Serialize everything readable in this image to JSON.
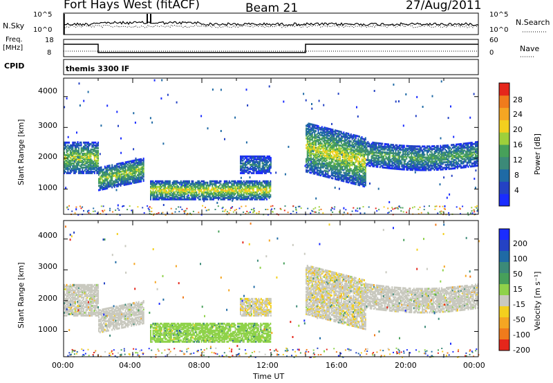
{
  "header": {
    "station": "Fort Hays West (fitACF)",
    "beam": "Beam 21",
    "date": "27/Aug/2011"
  },
  "noise_panel": {
    "left_label": "N.Sky",
    "right_label": "N.Search",
    "left_ticks": [
      "10^5",
      "10^0"
    ],
    "right_ticks": [
      "10^5",
      "10^0"
    ]
  },
  "freq_panel": {
    "left_label_1": "Freq.",
    "left_label_2": "[MHz]",
    "left_ticks": [
      "18",
      "8"
    ],
    "right_label": "Nave",
    "right_ticks": [
      "60",
      "0"
    ]
  },
  "cpid_panel": {
    "label": "CPID",
    "text": "themis 3300 IF"
  },
  "x_axis": {
    "ticks": [
      "00:00",
      "04:00",
      "08:00",
      "12:00",
      "16:00",
      "20:00",
      "00:00"
    ],
    "label": "Time UT"
  },
  "power_panel": {
    "ylabel": "Slant Range [km]",
    "yticks": [
      "4000",
      "3000",
      "2000",
      "1000"
    ],
    "colorbar_label": "Power [dB]",
    "colorbar_ticks": [
      "28",
      "24",
      "20",
      "16",
      "12",
      "8",
      "4"
    ]
  },
  "velocity_panel": {
    "ylabel": "Slant Range [km]",
    "yticks": [
      "4000",
      "3000",
      "2000",
      "1000"
    ],
    "colorbar_label": "Velocity [m s⁻¹]",
    "colorbar_ticks": [
      "200",
      "100",
      "50",
      "15",
      "-15",
      "-50",
      "-100",
      "-200"
    ]
  },
  "chart_data": {
    "type": "heatmap",
    "x_range_hours": [
      0,
      24
    ],
    "y_range_km": [
      180,
      4600
    ],
    "power_colors": [
      "#1a2cff",
      "#2442c4",
      "#1f6aa5",
      "#3c8a78",
      "#47a05a",
      "#9ed03b",
      "#f3d01e",
      "#f5a623",
      "#f07b1c",
      "#e5261b"
    ],
    "velocity_colors": [
      "#1a2cff",
      "#2442c4",
      "#1f6aa5",
      "#3c8a78",
      "#47a05a",
      "#8fd24a",
      "#c9c9bf",
      "#f3d01e",
      "#f5a623",
      "#f07b1c",
      "#e5261b"
    ],
    "echo_bands": [
      {
        "t_start": 0.0,
        "t_end": 2.0,
        "r_low": 1550,
        "r_high": 2550,
        "power_db": 18,
        "velocity": -5
      },
      {
        "t_start": 2.0,
        "t_end": 4.6,
        "r_low": 1000,
        "r_high": 1750,
        "power_db": 17,
        "velocity": 5
      },
      {
        "t_start": 5.0,
        "t_end": 12.0,
        "r_low": 700,
        "r_high": 1300,
        "power_db": 20,
        "velocity": 25
      },
      {
        "t_start": 10.2,
        "t_end": 12.0,
        "r_low": 1550,
        "r_high": 2100,
        "power_db": 10,
        "velocity": -10
      },
      {
        "t_start": 14.0,
        "t_end": 17.5,
        "r_low": 1600,
        "r_high": 3200,
        "power_db": 19,
        "velocity": -8
      },
      {
        "t_start": 17.5,
        "t_end": 24.0,
        "r_low": 1800,
        "r_high": 2600,
        "power_db": 14,
        "velocity": -4
      }
    ],
    "freq_mhz": [
      {
        "t_start": 0,
        "t_end": 2,
        "value": 16
      },
      {
        "t_start": 2,
        "t_end": 14,
        "value": 10
      },
      {
        "t_start": 14,
        "t_end": 24,
        "value": 16
      }
    ],
    "nave": 10
  }
}
